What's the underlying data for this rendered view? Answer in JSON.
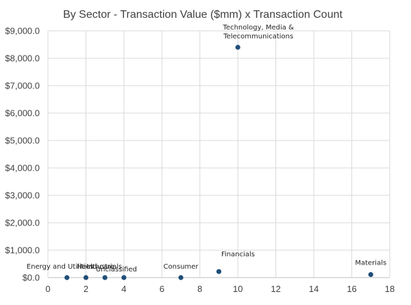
{
  "chart_data": {
    "type": "scatter",
    "title": "By Sector - Transaction Value ($mm) x Transaction Count",
    "xlabel": "",
    "ylabel": "",
    "xlim": [
      0,
      18
    ],
    "ylim": [
      0,
      9000
    ],
    "x_ticks": [
      0,
      2,
      4,
      6,
      8,
      10,
      12,
      14,
      16,
      18
    ],
    "y_ticks": [
      0,
      1000,
      2000,
      3000,
      4000,
      5000,
      6000,
      7000,
      8000,
      9000
    ],
    "x_tick_labels": [
      "0",
      "2",
      "4",
      "6",
      "8",
      "10",
      "12",
      "14",
      "16",
      "18"
    ],
    "y_tick_labels": [
      "$0.0",
      "$1,000.0",
      "$2,000.0",
      "$3,000.0",
      "$4,000.0",
      "$5,000.0",
      "$6,000.0",
      "$7,000.0",
      "$8,000.0",
      "$9,000.0"
    ],
    "grid": true,
    "legend": "none",
    "series": [
      {
        "marker_color": "#1f4e79",
        "points": [
          {
            "label": "Energy and Utilities",
            "x": 1,
            "y": 0
          },
          {
            "label": "Healthcare",
            "x": 2,
            "y": 0
          },
          {
            "label": "Industrials",
            "x": 3,
            "y": 0
          },
          {
            "label": "Unclassified",
            "x": 4,
            "y": 0
          },
          {
            "label": "Consumer",
            "x": 7,
            "y": 0
          },
          {
            "label": "Financials",
            "x": 9,
            "y": 220
          },
          {
            "label": "Technology, Media & Telecommunications",
            "x": 10,
            "y": 8400
          },
          {
            "label": "Materials",
            "x": 17,
            "y": 110
          }
        ]
      }
    ]
  }
}
